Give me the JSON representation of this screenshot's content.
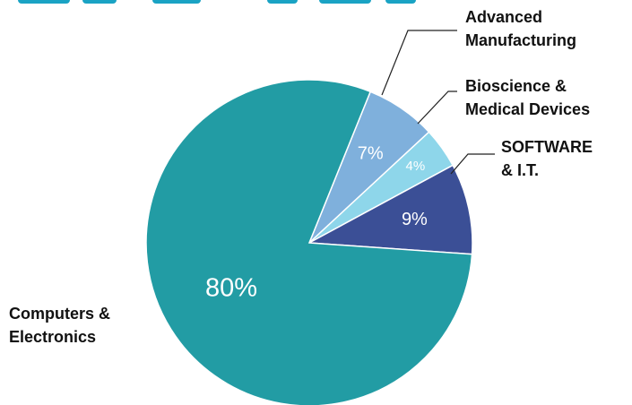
{
  "chart_data": {
    "type": "pie",
    "title": "",
    "slices": [
      {
        "label": "Advanced Manufacturing",
        "value": 7,
        "display": "7%",
        "color": "#7fb0dc"
      },
      {
        "label": "Bioscience & Medical Devices",
        "value": 4,
        "display": "4%",
        "color": "#8ed6ea"
      },
      {
        "label": "SOFTWARE & I.T.",
        "value": 9,
        "display": "9%",
        "color": "#3b4f96"
      },
      {
        "label": "Computers & Electronics",
        "value": 80,
        "display": "80%",
        "color": "#229ca4"
      }
    ],
    "legend_lines": {
      "advanced": [
        "Advanced",
        "Manufacturing"
      ],
      "bioscience": [
        "Bioscience &",
        "Medical Devices"
      ],
      "software": [
        "SOFTWARE",
        "& I.T."
      ],
      "computers": [
        "Computers &",
        "Electronics"
      ]
    }
  }
}
